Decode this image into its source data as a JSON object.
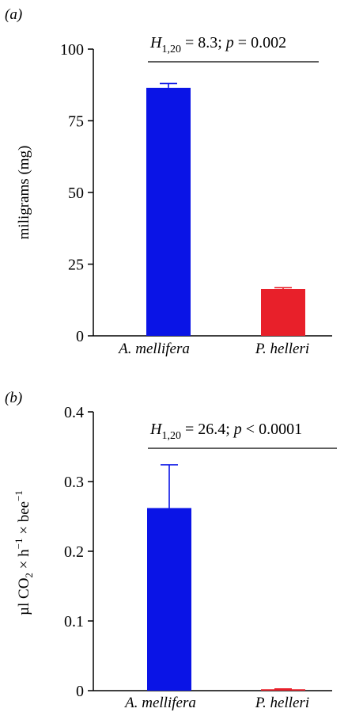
{
  "chart_data": [
    {
      "type": "bar",
      "panel_label": "(a)",
      "categories": [
        "A. mellifera",
        "P. helleri"
      ],
      "values": [
        86.5,
        16.3
      ],
      "error": [
        1.5,
        0.5
      ],
      "colors": [
        "#0a14e6",
        "#e8202a"
      ],
      "category_colors": [
        "#1a1ae6",
        "#e8202a"
      ],
      "ylabel": "miligrams (mg)",
      "ylim": [
        0,
        100
      ],
      "yticks": [
        0,
        25,
        50,
        75,
        100
      ],
      "ytick_labels": [
        "0",
        "25",
        "50",
        "75",
        "100"
      ],
      "stat": {
        "H": "H",
        "sub": "1,20",
        "rest": " = 8.3; ",
        "p": "p",
        "prest": " = 0.002"
      }
    },
    {
      "type": "bar",
      "panel_label": "(b)",
      "categories": [
        "A. mellifera",
        "P. helleri"
      ],
      "values": [
        0.262,
        0.002
      ],
      "error": [
        0.062,
        0.0005
      ],
      "colors": [
        "#0a14e6",
        "#e8202a"
      ],
      "category_colors": [
        "#1a1ae6",
        "#e8202a"
      ],
      "ylabel": "µl CO₂ × h⁻¹ × bee⁻¹",
      "ylim": [
        0,
        0.4
      ],
      "yticks": [
        0,
        0.1,
        0.2,
        0.3,
        0.4
      ],
      "ytick_labels": [
        "0",
        "0.1",
        "0.2",
        "0.3",
        "0.4"
      ],
      "stat": {
        "H": "H",
        "sub": "1,20",
        "rest": " = 26.4; ",
        "p": "p",
        "prest": " < 0.0001"
      }
    }
  ]
}
